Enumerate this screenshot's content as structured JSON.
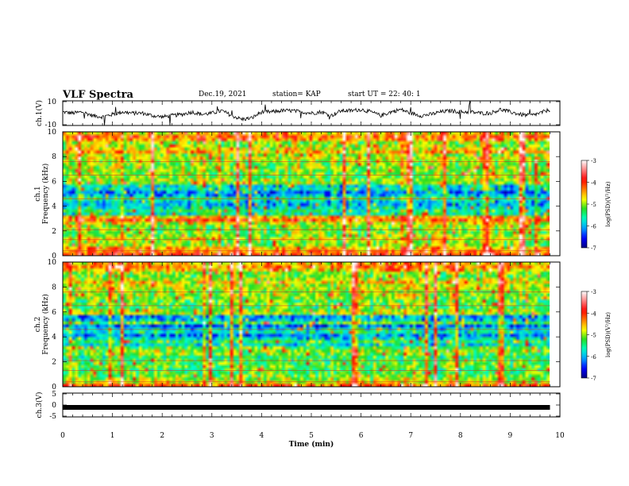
{
  "header": {
    "title": "VLF Spectra",
    "date": "Dec.19, 2021",
    "station": "station= KAP",
    "start": "start  UT  =   22: 40: 1"
  },
  "chart_data": [
    {
      "type": "line",
      "name": "ch1-voltage",
      "ylabel": "ch.1(V)",
      "ylim": [
        -10,
        10
      ],
      "yticks": [
        "10",
        "-10"
      ],
      "xlim": [
        0,
        10
      ],
      "x_end": 9.8,
      "trend": [
        1,
        0,
        1,
        -2,
        -3,
        -1,
        1,
        0,
        0,
        -2,
        -3,
        -2,
        -1,
        1,
        -1,
        0,
        2,
        -2,
        -5,
        -4,
        1,
        1,
        2,
        2,
        1,
        0,
        1,
        -2,
        2,
        2,
        3,
        1,
        -2,
        1,
        3,
        0,
        -2,
        -1,
        1,
        2,
        1,
        1,
        0,
        0,
        3,
        1,
        -1,
        -2,
        0,
        3
      ]
    },
    {
      "type": "heatmap",
      "name": "ch1-spectrogram",
      "ylabel": "ch.1\nFrequency (kHz)",
      "ylim": [
        0,
        10
      ],
      "yticks": [
        "10",
        "8",
        "6",
        "4",
        "2",
        "0"
      ],
      "xlim": [
        0,
        10
      ],
      "x_end": 9.8,
      "colorbar": {
        "label": "log(PSD)(V²/Hz)",
        "range": [
          -7,
          -3
        ],
        "ticks": [
          "-3",
          "-4",
          "-5",
          "-6",
          "-7"
        ]
      },
      "freq_profile_log_psd": [
        -4.0,
        -4.4,
        -4.6,
        -5.0,
        -5.0,
        -4.8,
        -5.0,
        -5.1,
        -5.1,
        -5.0,
        -4.8,
        -4.2,
        -4.6,
        -5.6,
        -5.4,
        -5.7,
        -6.0,
        -5.9,
        -5.4,
        -6.0,
        -6.2,
        -5.7,
        -5.8,
        -5.0,
        -5.0,
        -5.1,
        -5.1,
        -5.0,
        -5.0,
        -5.0,
        -5.0,
        -4.8,
        -5.0,
        -4.5,
        -4.8,
        -5.0,
        -5.0,
        -4.4,
        -4.2,
        -4.6
      ]
    },
    {
      "type": "heatmap",
      "name": "ch2-spectrogram",
      "ylabel": "ch.2\nFrequency (kHz)",
      "ylim": [
        0,
        10
      ],
      "yticks": [
        "10",
        "8",
        "6",
        "4",
        "2",
        "0"
      ],
      "xlim": [
        0,
        10
      ],
      "x_end": 9.8,
      "colorbar": {
        "label": "log(PSD)(V²/Hz)",
        "range": [
          -7,
          -3
        ],
        "ticks": [
          "-3",
          "-4",
          "-5",
          "-6",
          "-7"
        ]
      },
      "freq_profile_log_psd": [
        -4.2,
        -4.8,
        -5.0,
        -5.1,
        -5.2,
        -5.3,
        -5.1,
        -5.2,
        -5.3,
        -5.4,
        -5.1,
        -5.0,
        -5.2,
        -5.8,
        -5.3,
        -5.8,
        -6.1,
        -5.6,
        -5.8,
        -6.2,
        -5.2,
        -5.9,
        -6.1,
        -4.9,
        -5.0,
        -5.3,
        -5.1,
        -5.2,
        -5.0,
        -4.9,
        -5.0,
        -4.8,
        -4.9,
        -4.6,
        -4.9,
        -5.1,
        -5.0,
        -4.5,
        -4.3,
        -4.5
      ]
    },
    {
      "type": "line",
      "name": "ch3-voltage",
      "ylabel": "ch.3(V)",
      "ylim": [
        -5,
        5
      ],
      "yticks": [
        "5",
        "0",
        "-5"
      ],
      "xlim": [
        0,
        10
      ],
      "x_end": 9.8,
      "level": -1.0
    }
  ],
  "xaxis": {
    "label": "Time (min)",
    "ticks": [
      "0",
      "1",
      "2",
      "3",
      "4",
      "5",
      "6",
      "7",
      "8",
      "9",
      "10"
    ]
  },
  "colors": {
    "colormap": [
      "#000080",
      "#0000ff",
      "#00a0ff",
      "#00ffc8",
      "#22dd22",
      "#ffff00",
      "#ff7f00",
      "#ff0000",
      "#ff8080",
      "#ffffff"
    ]
  }
}
